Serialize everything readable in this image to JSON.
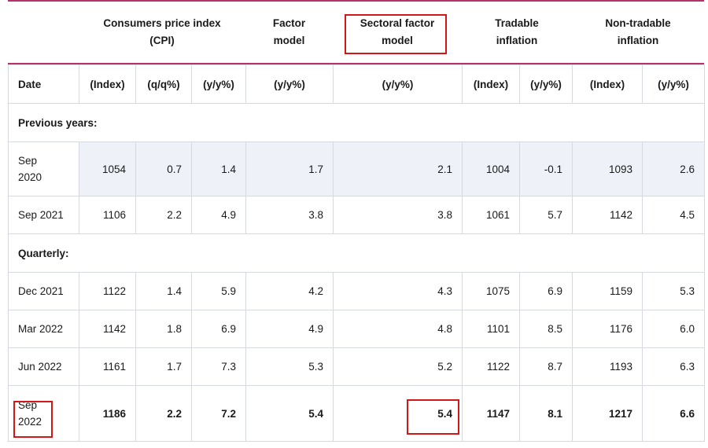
{
  "groups": {
    "cpi": "Consumers price index\n(CPI)",
    "factor": "Factor\nmodel",
    "sectoral": "Sectoral factor\nmodel",
    "tradable": "Tradable\ninflation",
    "nontradable": "Non-tradable\ninflation"
  },
  "columns": [
    "Date",
    "(Index)",
    "(q/q%)",
    "(y/y%)",
    "(y/y%)",
    "(y/y%)",
    "(Index)",
    "(y/y%)",
    "(Index)",
    "(y/y%)"
  ],
  "sections": {
    "previous": "Previous years:",
    "quarterly": "Quarterly:"
  },
  "previous_rows": [
    {
      "date": "Sep\n2020",
      "cpi_index": "1054",
      "cpi_qq": "0.7",
      "cpi_yy": "1.4",
      "factor_yy": "1.7",
      "sectoral_yy": "2.1",
      "trad_index": "1004",
      "trad_yy": "-0.1",
      "nontrad_index": "1093",
      "nontrad_yy": "2.6"
    },
    {
      "date": "Sep 2021",
      "cpi_index": "1106",
      "cpi_qq": "2.2",
      "cpi_yy": "4.9",
      "factor_yy": "3.8",
      "sectoral_yy": "3.8",
      "trad_index": "1061",
      "trad_yy": "5.7",
      "nontrad_index": "1142",
      "nontrad_yy": "4.5"
    }
  ],
  "quarterly_rows": [
    {
      "date": "Dec 2021",
      "cpi_index": "1122",
      "cpi_qq": "1.4",
      "cpi_yy": "5.9",
      "factor_yy": "4.2",
      "sectoral_yy": "4.3",
      "trad_index": "1075",
      "trad_yy": "6.9",
      "nontrad_index": "1159",
      "nontrad_yy": "5.3"
    },
    {
      "date": "Mar 2022",
      "cpi_index": "1142",
      "cpi_qq": "1.8",
      "cpi_yy": "6.9",
      "factor_yy": "4.9",
      "sectoral_yy": "4.8",
      "trad_index": "1101",
      "trad_yy": "8.5",
      "nontrad_index": "1176",
      "nontrad_yy": "6.0"
    },
    {
      "date": "Jun 2022",
      "cpi_index": "1161",
      "cpi_qq": "1.7",
      "cpi_yy": "7.3",
      "factor_yy": "5.3",
      "sectoral_yy": "5.2",
      "trad_index": "1122",
      "trad_yy": "8.7",
      "nontrad_index": "1193",
      "nontrad_yy": "6.3"
    },
    {
      "date": "Sep\n2022",
      "cpi_index": "1186",
      "cpi_qq": "2.2",
      "cpi_yy": "7.2",
      "factor_yy": "5.4",
      "sectoral_yy": "5.4",
      "trad_index": "1147",
      "trad_yy": "8.1",
      "nontrad_index": "1217",
      "nontrad_yy": "6.6"
    }
  ],
  "colors": {
    "header_rule": "#b5326b",
    "highlight": "#d01818",
    "shade": "#eef1f8",
    "grid": "#d6d9e0"
  }
}
